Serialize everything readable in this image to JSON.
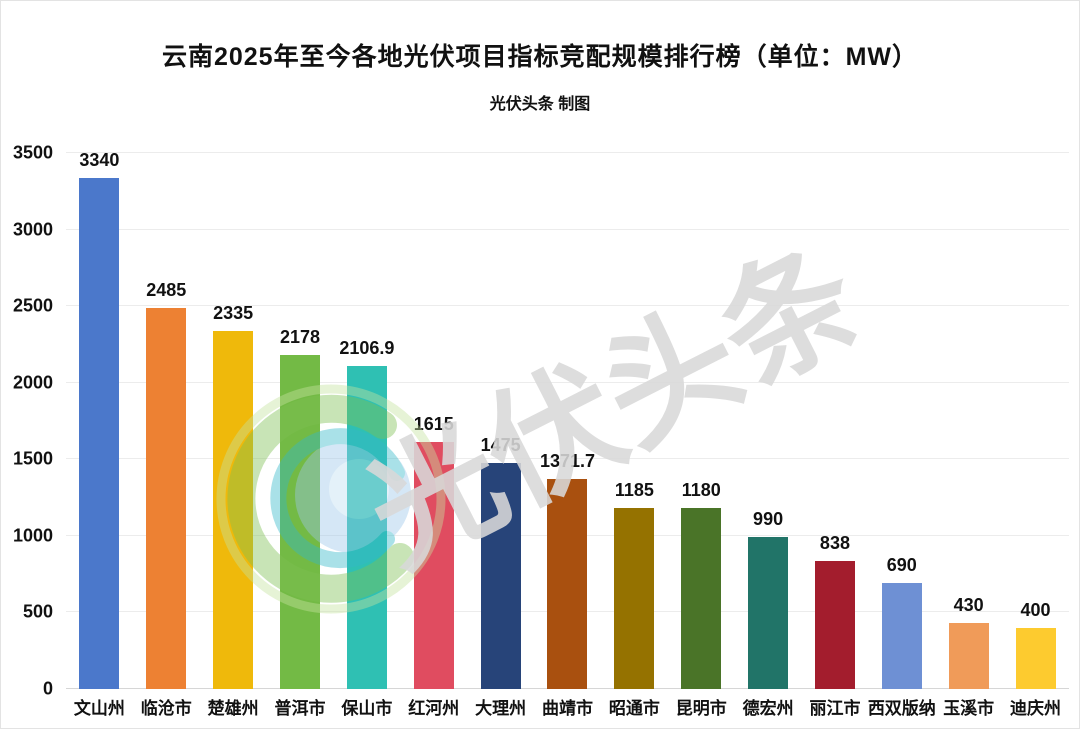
{
  "title": "云南2025年至今各地光伏项目指标竞配规模排行榜（单位：MW）",
  "subtitle": "光伏头条 制图",
  "watermark": {
    "text": "光伏头条",
    "logo": "solar-headline-swirl-logo",
    "text_color": "#d9d9d9"
  },
  "chart_data": {
    "type": "bar",
    "title": "云南2025年至今各地光伏项目指标竞配规模排行榜（单位：MW）",
    "subtitle": "光伏头条 制图",
    "unit": "MW",
    "categories": [
      "文山州",
      "临沧市",
      "楚雄州",
      "普洱市",
      "保山市",
      "红河州",
      "大理州",
      "曲靖市",
      "昭通市",
      "昆明市",
      "德宏州",
      "丽江市",
      "西双版纳",
      "玉溪市",
      "迪庆州"
    ],
    "values": [
      3340,
      2485,
      2335,
      2178,
      2106.9,
      1615,
      1475,
      1371.7,
      1185,
      1180,
      990,
      838,
      690,
      430,
      400
    ],
    "bar_colors": [
      "#4B78CB",
      "#ED8133",
      "#EFB90B",
      "#73BA45",
      "#2FC0B3",
      "#E04C60",
      "#274479",
      "#A9500F",
      "#957200",
      "#4A7428",
      "#217468",
      "#A31D2D",
      "#6E90D4",
      "#F09B59",
      "#FDCB2F"
    ],
    "xlabel": "",
    "ylabel": "",
    "ylim": [
      0,
      3500
    ],
    "yticks": [
      0,
      500,
      1000,
      1500,
      2000,
      2500,
      3000,
      3500
    ],
    "grid": true,
    "legend": null,
    "value_labels": true,
    "grid_color": "#ececec",
    "axis_color": "#d6d6d6"
  }
}
